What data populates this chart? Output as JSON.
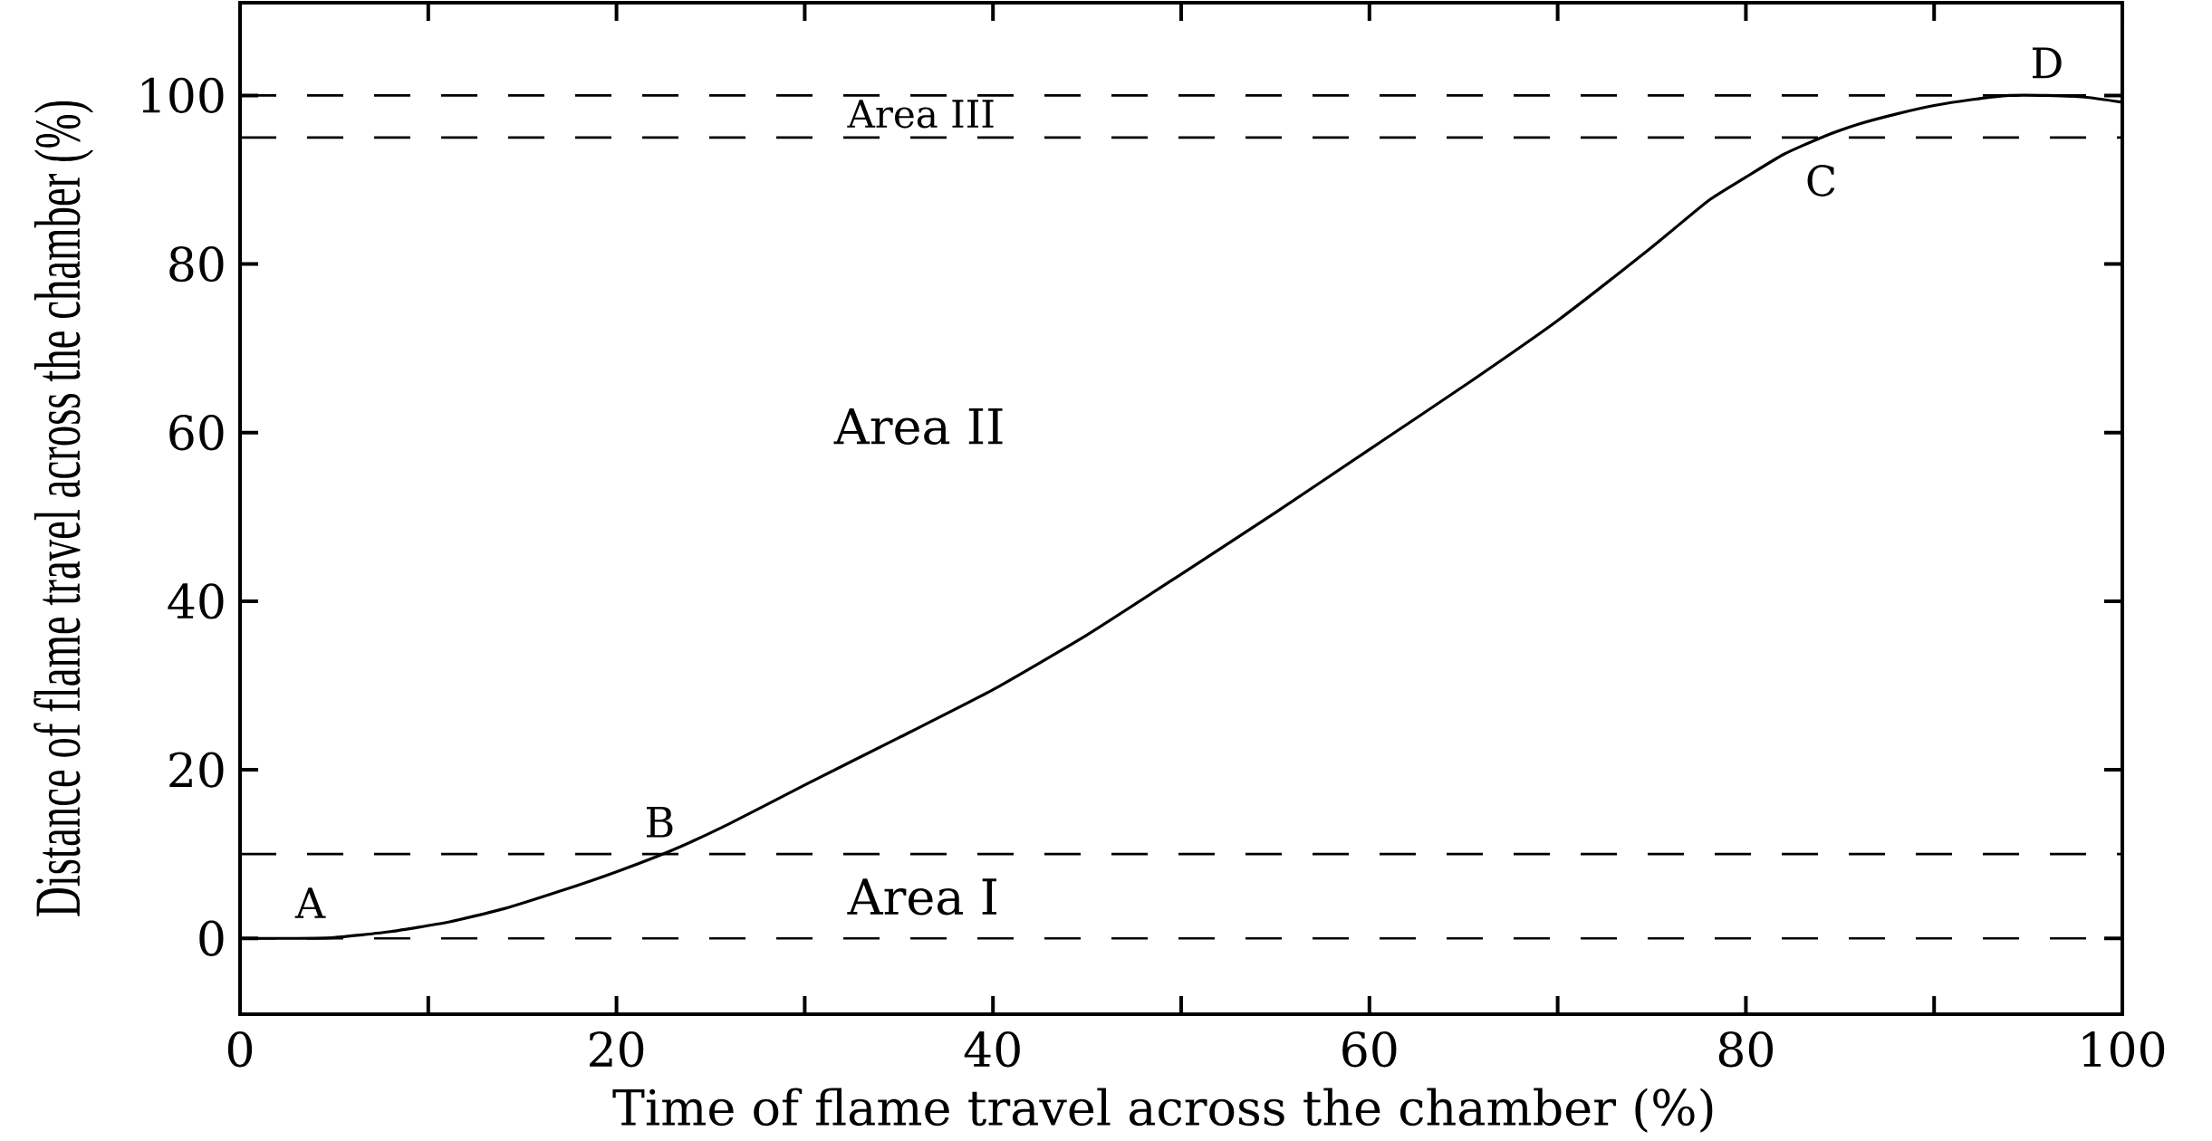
{
  "chart_data": {
    "type": "line",
    "xlabel": "Time of flame travel across the chamber (%)",
    "ylabel": "Distance of flame travel across the chamber (%)",
    "x": [
      0,
      3,
      5,
      8,
      11,
      14,
      17,
      20,
      23,
      26,
      30,
      35,
      40,
      45,
      50,
      55,
      60,
      65,
      70,
      75,
      78,
      80,
      82,
      84,
      86,
      88,
      90,
      92,
      94,
      96,
      98,
      100
    ],
    "values": [
      0,
      0,
      0.1,
      0.8,
      1.9,
      3.5,
      5.6,
      7.9,
      10.5,
      13.6,
      18.2,
      23.8,
      29.5,
      36,
      43.2,
      50.5,
      58,
      65.5,
      73.3,
      82,
      87.5,
      90.3,
      93,
      95,
      96.6,
      97.8,
      98.8,
      99.5,
      100,
      100,
      99.8,
      99.2
    ],
    "color": "#000000",
    "line_style": "solid",
    "xlim": [
      0,
      100
    ],
    "ylim": [
      -9,
      111
    ],
    "xticks": [
      0,
      20,
      40,
      60,
      80,
      100
    ],
    "yticks": [
      0,
      20,
      40,
      60,
      80,
      100
    ],
    "ref_lines": [
      {
        "axis": "y",
        "value": 0,
        "line_style": "dashed"
      },
      {
        "axis": "y",
        "value": 10,
        "line_style": "dashed"
      },
      {
        "axis": "y",
        "value": 95,
        "line_style": "dashed"
      },
      {
        "axis": "y",
        "value": 100,
        "line_style": "dashed"
      }
    ],
    "annotations": [
      {
        "text": "A",
        "x": 3,
        "y": 0
      },
      {
        "text": "B",
        "x": 23,
        "y": 10
      },
      {
        "text": "C",
        "x": 84,
        "y": 95
      },
      {
        "text": "D",
        "x": 96,
        "y": 100
      },
      "Area I",
      "Area II",
      "Area III"
    ]
  }
}
